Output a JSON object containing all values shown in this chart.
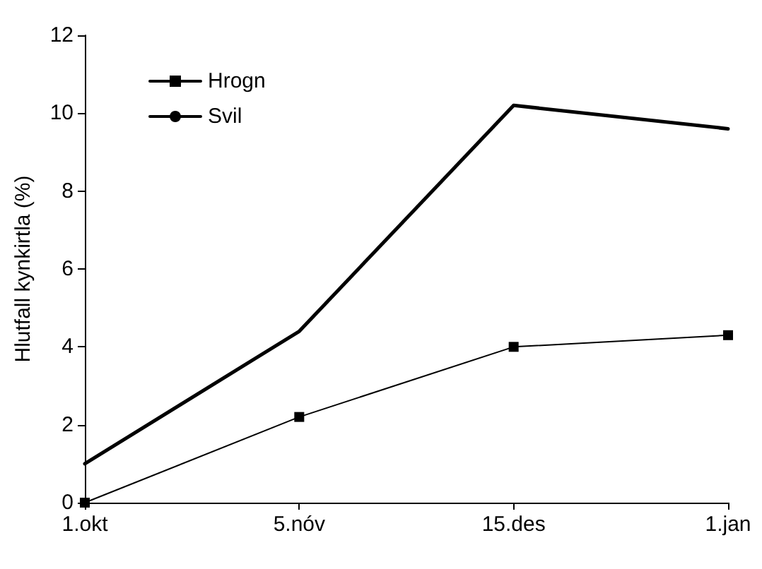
{
  "chart_data": {
    "type": "line",
    "ylabel": "Hlutfall kynkirtla (%)",
    "categories": [
      "1.okt",
      "5.nóv",
      "15.des",
      "1.jan"
    ],
    "series": [
      {
        "name": "Hrogn",
        "color": "#000000",
        "marker": "square",
        "values": [
          0,
          2.2,
          4.0,
          4.3
        ]
      },
      {
        "name": "Svil",
        "color": "#000000",
        "marker": "none",
        "values": [
          1.0,
          4.4,
          10.2,
          9.6
        ]
      }
    ],
    "ylim": [
      0,
      12
    ],
    "yticks": [
      0,
      2,
      4,
      6,
      8,
      10,
      12
    ],
    "grid": false,
    "legend": "top left",
    "line_style": "solid"
  }
}
